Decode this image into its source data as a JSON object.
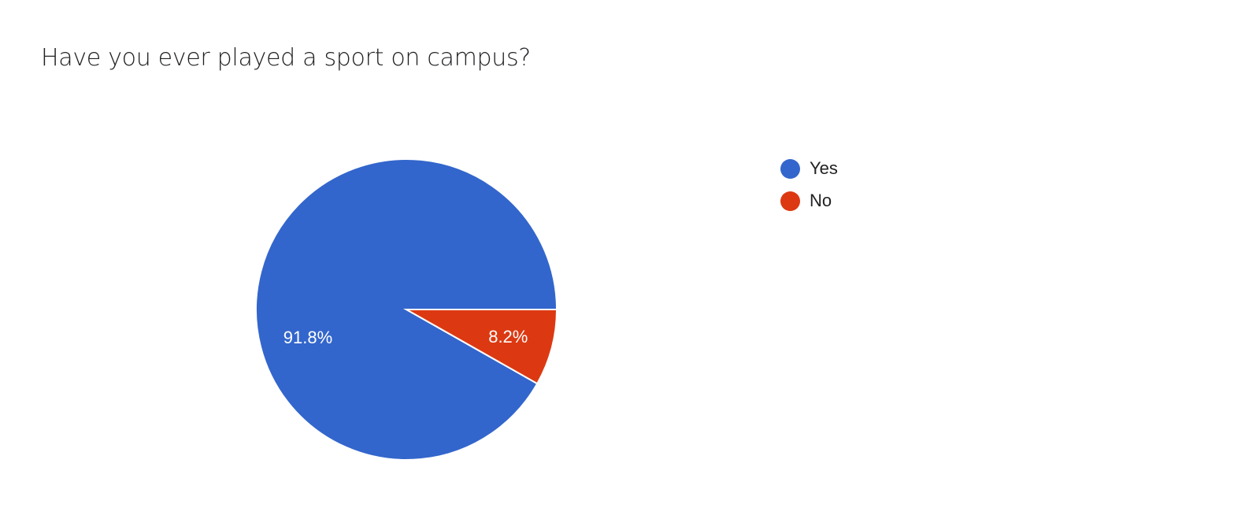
{
  "chart_data": {
    "type": "pie",
    "title": "Have you ever played a sport on campus?",
    "categories": [
      "Yes",
      "No"
    ],
    "values": [
      91.8,
      8.2
    ],
    "data_labels": [
      "91.8%",
      "8.2%"
    ],
    "colors": [
      "#3366cc",
      "#dc3912"
    ],
    "legend_position": "right"
  }
}
